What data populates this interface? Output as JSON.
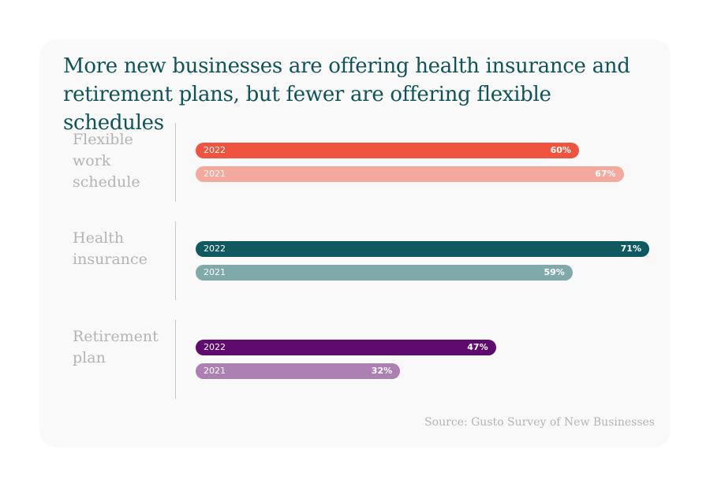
{
  "chart_data": {
    "type": "bar",
    "orientation": "horizontal",
    "title": "More new businesses are offering health insurance and retirement plans, but fewer are offering flexible schedules",
    "categories": [
      "Flexible work schedule",
      "Health insurance",
      "Retirement plan"
    ],
    "series": [
      {
        "name": "2022",
        "values": [
          60,
          71,
          47
        ]
      },
      {
        "name": "2021",
        "values": [
          67,
          59,
          32
        ]
      }
    ],
    "value_labels": [
      [
        "60%",
        "67%"
      ],
      [
        "71%",
        "59%"
      ],
      [
        "47%",
        "32%"
      ]
    ],
    "xlim": [
      0,
      71
    ],
    "unit": "%",
    "grid": false,
    "source": "Source: Gusto Survey of New Businesses",
    "colors": [
      [
        "#ef5440",
        "#f4a99d"
      ],
      [
        "#0f5a60",
        "#80a9aa"
      ],
      [
        "#5e0a6e",
        "#ad80b3"
      ]
    ]
  }
}
